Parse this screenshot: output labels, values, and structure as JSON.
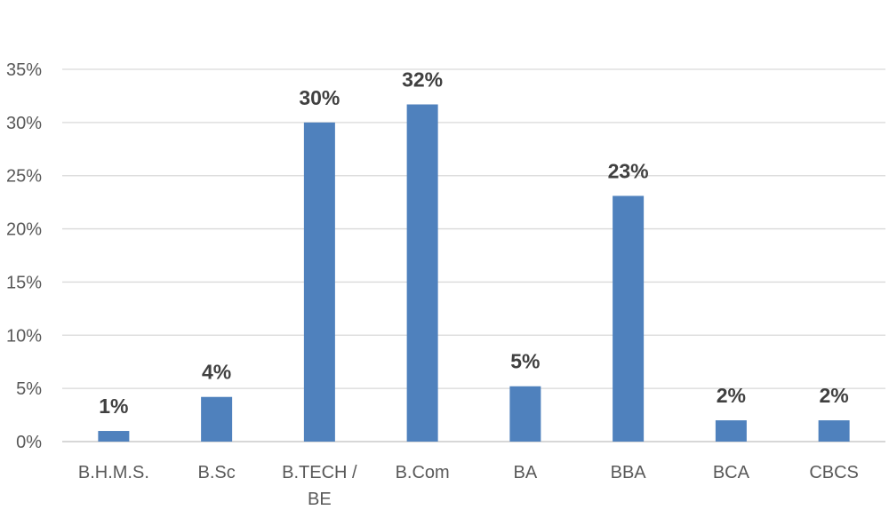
{
  "chart_data": {
    "type": "bar",
    "title": "",
    "xlabel": "",
    "ylabel": "",
    "categories": [
      "B.H.M.S.",
      "B.Sc",
      "B.TECH / BE",
      "B.Com",
      "BA",
      "BBA",
      "BCA",
      "CBCS"
    ],
    "values": [
      1,
      4.2,
      30,
      31.7,
      5.2,
      23.1,
      2,
      2
    ],
    "data_labels": [
      "1%",
      "4%",
      "30%",
      "32%",
      "5%",
      "23%",
      "2%",
      "2%"
    ],
    "y_ticks": [
      "0%",
      "5%",
      "10%",
      "15%",
      "20%",
      "25%",
      "30%",
      "35%"
    ],
    "ylim": [
      0,
      35
    ],
    "y_tick_step": 5,
    "grid": true,
    "legend": "none",
    "bar_color": "#4f81bd"
  }
}
